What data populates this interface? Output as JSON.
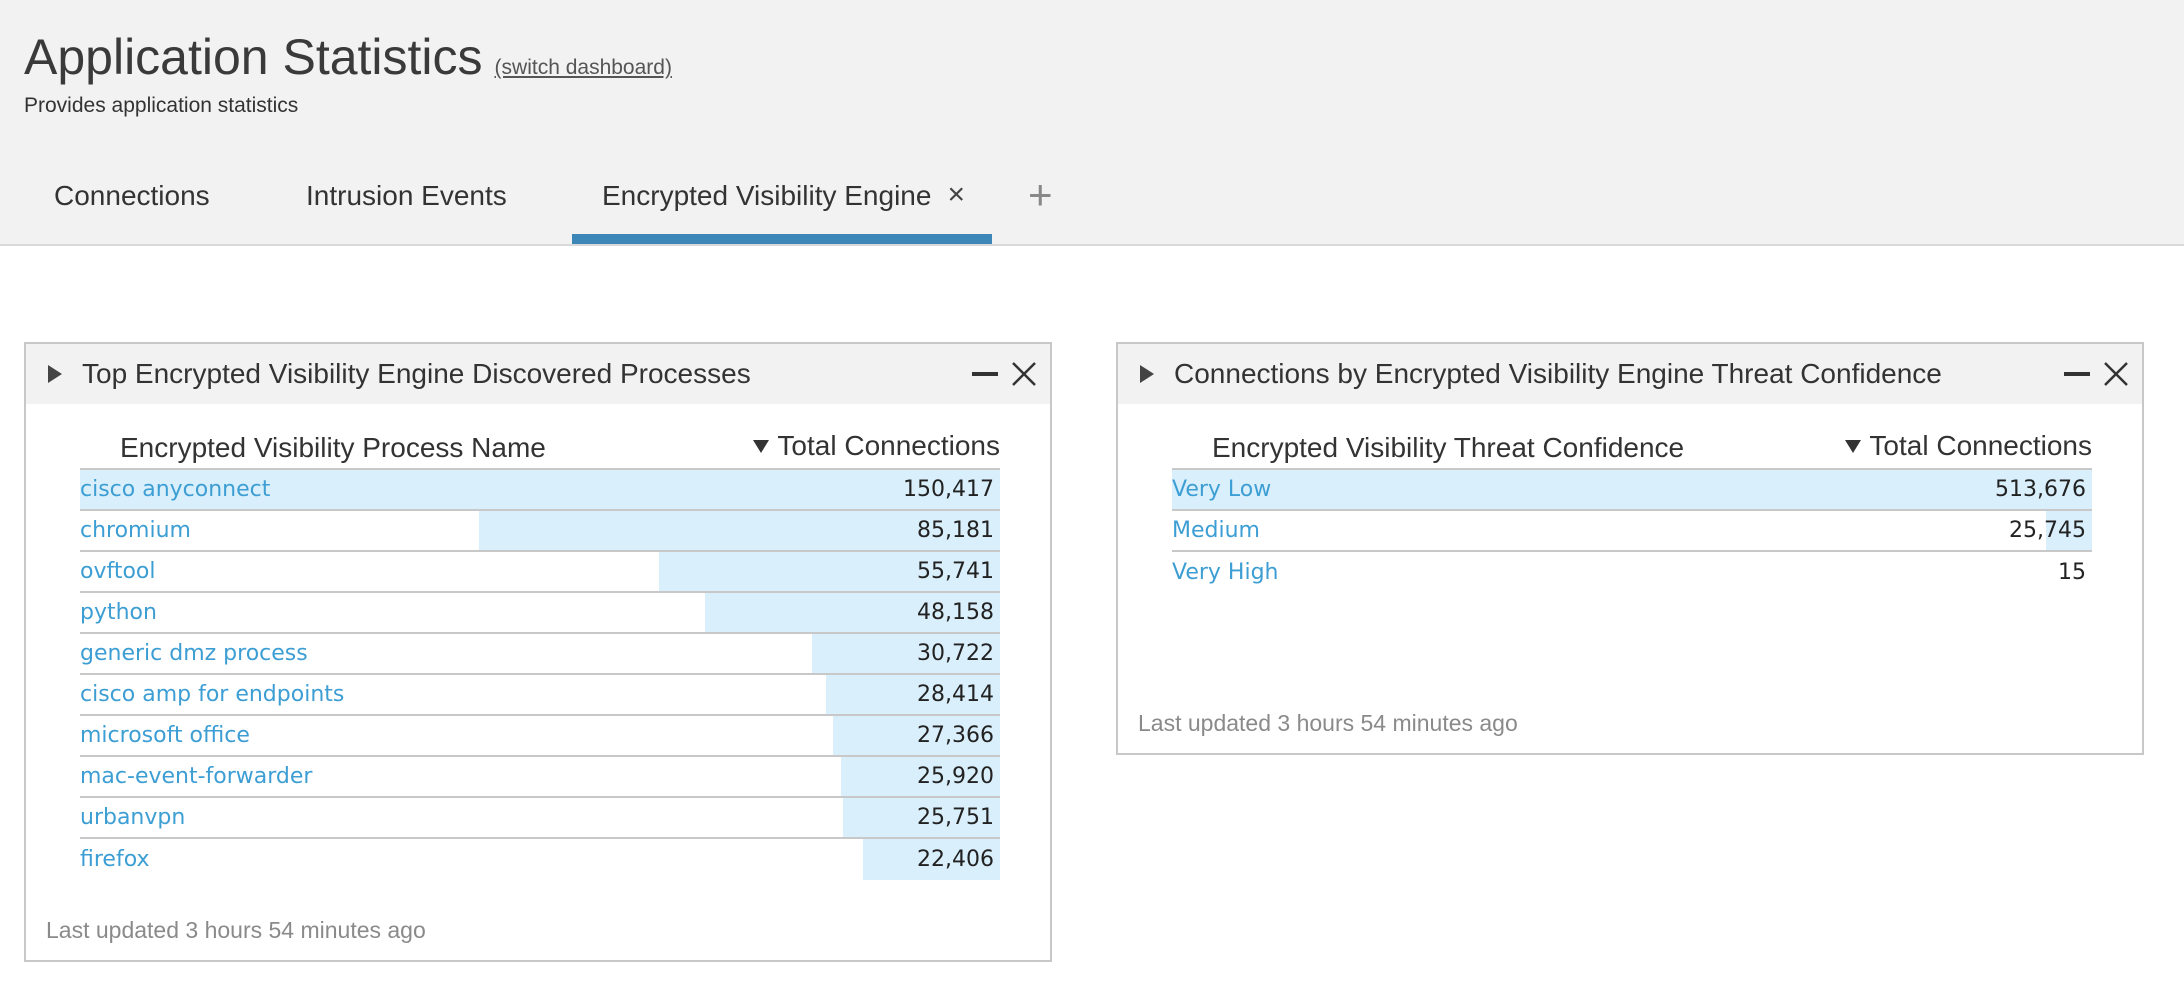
{
  "page": {
    "title": "Application Statistics",
    "switch_link": "(switch dashboard)",
    "subtitle": "Provides application statistics"
  },
  "tabs": [
    {
      "label": "Connections",
      "active": false
    },
    {
      "label": "Intrusion Events",
      "active": false
    },
    {
      "label": "Encrypted Visibility Engine",
      "active": true,
      "close": "×"
    }
  ],
  "tab_add": "+",
  "colors": {
    "accent": "#3d87b8",
    "link": "#3d9ed4",
    "bar": "#d9effb",
    "header_bg": "#f2f2f2"
  },
  "widgets": [
    {
      "title": "Top Encrypted Visibility Engine Discovered Processes",
      "col_name": "Encrypted Visibility Process Name",
      "col_total": "Total Connections",
      "max": 150417,
      "rows": [
        {
          "name": "cisco anyconnect",
          "value": "150,417",
          "num": 150417
        },
        {
          "name": "chromium",
          "value": "85,181",
          "num": 85181
        },
        {
          "name": "ovftool",
          "value": "55,741",
          "num": 55741
        },
        {
          "name": "python",
          "value": "48,158",
          "num": 48158
        },
        {
          "name": "generic dmz process",
          "value": "30,722",
          "num": 30722
        },
        {
          "name": "cisco amp for endpoints",
          "value": "28,414",
          "num": 28414
        },
        {
          "name": "microsoft office",
          "value": "27,366",
          "num": 27366
        },
        {
          "name": "mac-event-forwarder",
          "value": "25,920",
          "num": 25920
        },
        {
          "name": "urbanvpn",
          "value": "25,751",
          "num": 25751
        },
        {
          "name": "firefox",
          "value": "22,406",
          "num": 22406
        }
      ],
      "footer": "Last updated 3 hours 54 minutes ago"
    },
    {
      "title": "Connections by Encrypted Visibility Engine Threat Confidence",
      "col_name": "Encrypted Visibility Threat Confidence",
      "col_total": "Total Connections",
      "max": 513676,
      "rows": [
        {
          "name": "Very Low",
          "value": "513,676",
          "num": 513676
        },
        {
          "name": "Medium",
          "value": "25,745",
          "num": 25745
        },
        {
          "name": "Very High",
          "value": "15",
          "num": 15
        }
      ],
      "footer": "Last updated 3 hours 54 minutes ago"
    }
  ],
  "icons": {
    "expand": "triangle-right-icon",
    "minimize": "minus-icon",
    "close": "close-icon",
    "sort": "triangle-down-icon"
  }
}
